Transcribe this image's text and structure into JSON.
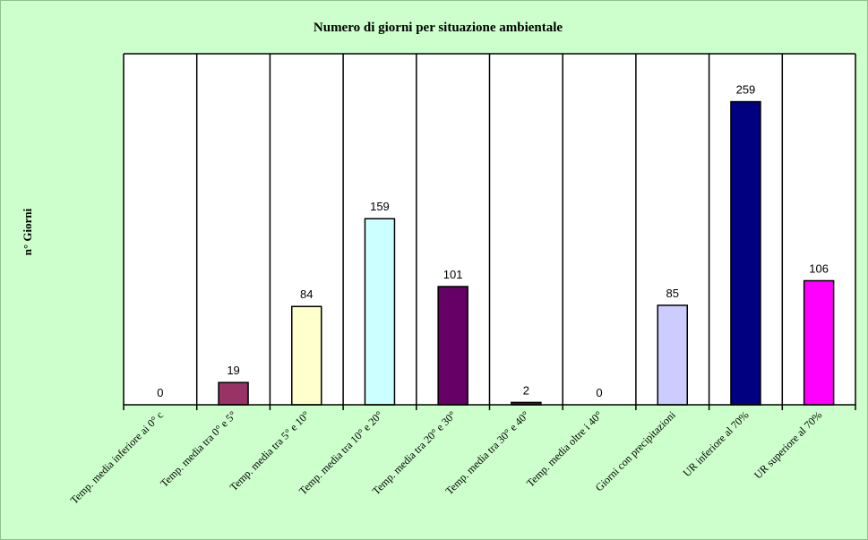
{
  "chart_data": {
    "type": "bar",
    "title": "Numero di giorni per situazione ambientale",
    "ylabel": "n° Giorni",
    "xlabel": "",
    "ylim": [
      0,
      300
    ],
    "grid": false,
    "legend": "none",
    "categories": [
      "Temp. media inferiore ai 0° c",
      "Temp. media tra 0° e 5°",
      "Temp. media tra 5° e 10°",
      "Temp. media tra 10° e 20°",
      "Temp. media tra 20° e 30°",
      "Temp. media tra 30° e 40°",
      "Temp. media oltre i 40°",
      "Giorni con precipitazioni",
      "UR inferiore al 70%",
      "UR superiore al 70%"
    ],
    "values": [
      0,
      19,
      84,
      159,
      101,
      2,
      0,
      85,
      259,
      106
    ],
    "colors": [
      "#993366",
      "#993366",
      "#ffffcc",
      "#ccffff",
      "#660066",
      "#660066",
      "#660066",
      "#ccccff",
      "#000080",
      "#ff00ff"
    ]
  }
}
